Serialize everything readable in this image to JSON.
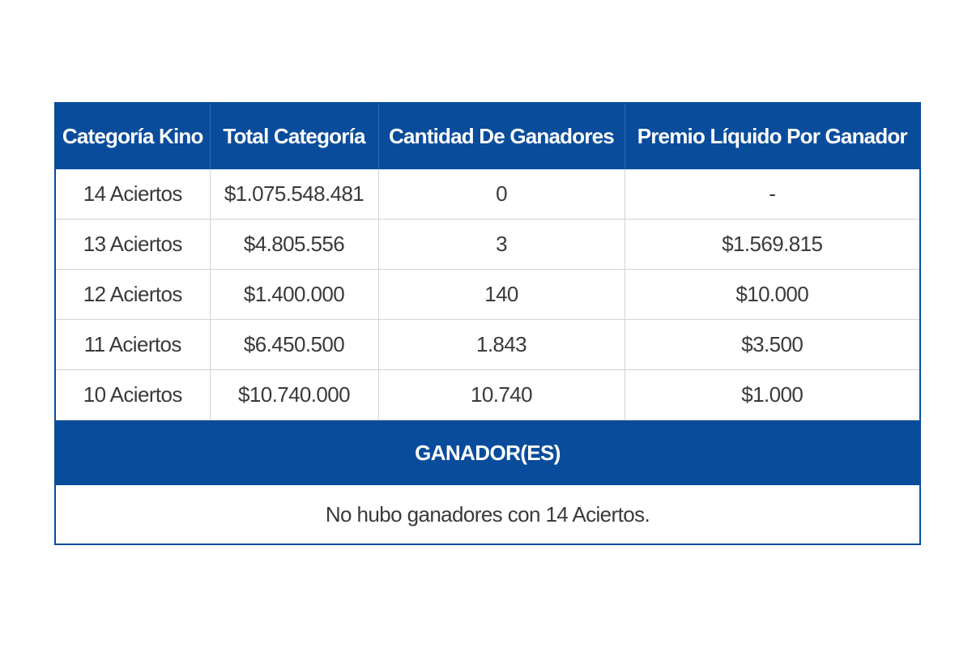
{
  "table": {
    "headers": [
      "Categoría Kino",
      "Total Categoría",
      "Cantidad De Ganadores",
      "Premio Líquido Por Ganador"
    ],
    "rows": [
      [
        "14 Aciertos",
        "$1.075.548.481",
        "0",
        "-"
      ],
      [
        "13 Aciertos",
        "$4.805.556",
        "3",
        "$1.569.815"
      ],
      [
        "12 Aciertos",
        "$1.400.000",
        "140",
        "$10.000"
      ],
      [
        "11 Aciertos",
        "$6.450.500",
        "1.843",
        "$3.500"
      ],
      [
        "10 Aciertos",
        "$10.740.000",
        "10.740",
        "$1.000"
      ]
    ]
  },
  "winners": {
    "title": "GANADOR(ES)",
    "message": "No hubo ganadores con 14 Aciertos."
  },
  "colors": {
    "header_bg": "#0a4c9c",
    "header_text": "#ffffff",
    "cell_text": "#3a3a3a",
    "grid_line": "#d3d3d3"
  }
}
